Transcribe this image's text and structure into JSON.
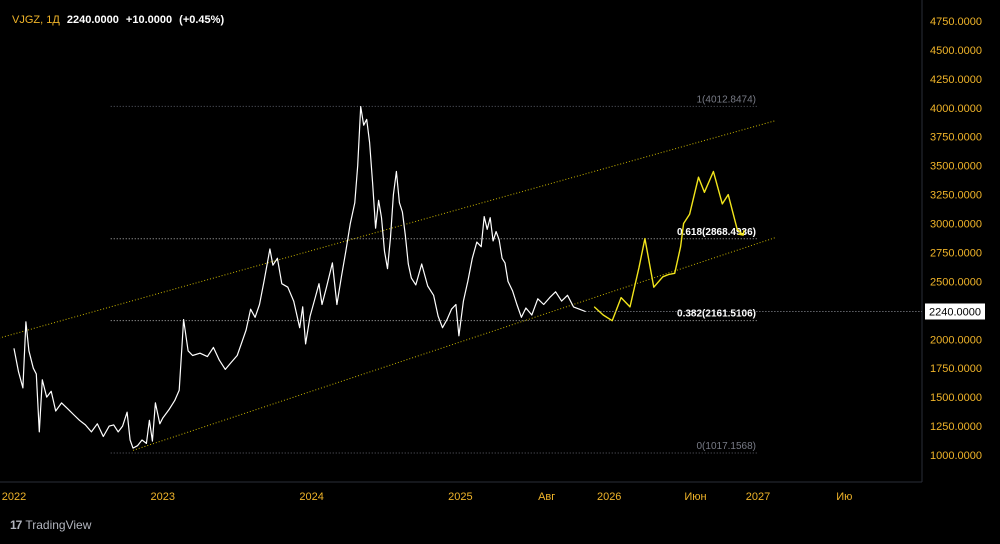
{
  "header": {
    "symbol": "VJGZ, 1Д",
    "last": "2240.0000",
    "change": "+10.0000",
    "change_pct": "(+0.45%)"
  },
  "watermark": {
    "brand": "TradingView",
    "logo_glyph": "17"
  },
  "colors": {
    "background": "#000000",
    "price": "#ffffff",
    "forecast": "#f2e51b",
    "channel": "#c8b400",
    "axis_text": "#f0b429",
    "fib": "#787b86"
  },
  "chart_data": {
    "type": "line",
    "ylim": [
      880,
      4830
    ],
    "y_ticks": [
      "1000.0000",
      "1250.0000",
      "1500.0000",
      "1750.0000",
      "2000.0000",
      "2250.0000",
      "2500.0000",
      "2750.0000",
      "3000.0000",
      "3250.0000",
      "3500.0000",
      "3750.0000",
      "4000.0000",
      "4250.0000",
      "4500.0000",
      "4750.0000"
    ],
    "x_ticks": [
      "2022",
      "2023",
      "2024",
      "2025",
      "Авг",
      "2026",
      "Июн",
      "2027",
      "Ию"
    ],
    "last_price_label": "2240.0000",
    "fib_levels": [
      {
        "label": "1(4012.8474)",
        "value": 4012.8474
      },
      {
        "label": "0.618(2868.4936)",
        "value": 2868.4936
      },
      {
        "label": "0.382(2161.5106)",
        "value": 2161.5106
      },
      {
        "label": "0(1017.1568)",
        "value": 1017.1568
      }
    ],
    "price_series": [
      [
        2022.0,
        1920
      ],
      [
        2022.03,
        1720
      ],
      [
        2022.06,
        1580
      ],
      [
        2022.08,
        2150
      ],
      [
        2022.1,
        1900
      ],
      [
        2022.13,
        1750
      ],
      [
        2022.15,
        1700
      ],
      [
        2022.17,
        1200
      ],
      [
        2022.19,
        1650
      ],
      [
        2022.22,
        1500
      ],
      [
        2022.25,
        1550
      ],
      [
        2022.28,
        1380
      ],
      [
        2022.32,
        1450
      ],
      [
        2022.36,
        1400
      ],
      [
        2022.4,
        1350
      ],
      [
        2022.44,
        1300
      ],
      [
        2022.48,
        1260
      ],
      [
        2022.52,
        1200
      ],
      [
        2022.56,
        1270
      ],
      [
        2022.6,
        1160
      ],
      [
        2022.64,
        1250
      ],
      [
        2022.67,
        1260
      ],
      [
        2022.7,
        1200
      ],
      [
        2022.73,
        1250
      ],
      [
        2022.76,
        1370
      ],
      [
        2022.78,
        1130
      ],
      [
        2022.8,
        1060
      ],
      [
        2022.83,
        1080
      ],
      [
        2022.86,
        1130
      ],
      [
        2022.89,
        1100
      ],
      [
        2022.91,
        1300
      ],
      [
        2022.93,
        1120
      ],
      [
        2022.95,
        1450
      ],
      [
        2022.98,
        1270
      ],
      [
        2023.0,
        1320
      ],
      [
        2023.04,
        1390
      ],
      [
        2023.08,
        1470
      ],
      [
        2023.11,
        1560
      ],
      [
        2023.13,
        1960
      ],
      [
        2023.14,
        2170
      ],
      [
        2023.17,
        1900
      ],
      [
        2023.2,
        1860
      ],
      [
        2023.25,
        1880
      ],
      [
        2023.3,
        1850
      ],
      [
        2023.34,
        1930
      ],
      [
        2023.38,
        1820
      ],
      [
        2023.42,
        1740
      ],
      [
        2023.46,
        1800
      ],
      [
        2023.5,
        1860
      ],
      [
        2023.53,
        1970
      ],
      [
        2023.56,
        2080
      ],
      [
        2023.59,
        2260
      ],
      [
        2023.62,
        2190
      ],
      [
        2023.65,
        2300
      ],
      [
        2023.68,
        2500
      ],
      [
        2023.72,
        2780
      ],
      [
        2023.74,
        2640
      ],
      [
        2023.77,
        2700
      ],
      [
        2023.8,
        2480
      ],
      [
        2023.84,
        2450
      ],
      [
        2023.88,
        2330
      ],
      [
        2023.92,
        2100
      ],
      [
        2023.94,
        2280
      ],
      [
        2023.96,
        1960
      ],
      [
        2023.99,
        2200
      ],
      [
        2024.02,
        2340
      ],
      [
        2024.05,
        2480
      ],
      [
        2024.07,
        2300
      ],
      [
        2024.1,
        2450
      ],
      [
        2024.14,
        2660
      ],
      [
        2024.17,
        2300
      ],
      [
        2024.2,
        2540
      ],
      [
        2024.23,
        2760
      ],
      [
        2024.26,
        3000
      ],
      [
        2024.29,
        3180
      ],
      [
        2024.31,
        3500
      ],
      [
        2024.33,
        4010
      ],
      [
        2024.35,
        3850
      ],
      [
        2024.37,
        3900
      ],
      [
        2024.39,
        3700
      ],
      [
        2024.41,
        3350
      ],
      [
        2024.43,
        2960
      ],
      [
        2024.45,
        3200
      ],
      [
        2024.47,
        3050
      ],
      [
        2024.49,
        2760
      ],
      [
        2024.51,
        2610
      ],
      [
        2024.53,
        2880
      ],
      [
        2024.55,
        3250
      ],
      [
        2024.57,
        3450
      ],
      [
        2024.59,
        3180
      ],
      [
        2024.61,
        3100
      ],
      [
        2024.63,
        2900
      ],
      [
        2024.65,
        2650
      ],
      [
        2024.67,
        2530
      ],
      [
        2024.7,
        2470
      ],
      [
        2024.74,
        2650
      ],
      [
        2024.78,
        2460
      ],
      [
        2024.82,
        2380
      ],
      [
        2024.85,
        2200
      ],
      [
        2024.88,
        2100
      ],
      [
        2024.91,
        2170
      ],
      [
        2024.94,
        2260
      ],
      [
        2024.97,
        2300
      ],
      [
        2024.99,
        2030
      ],
      [
        2025.02,
        2330
      ],
      [
        2025.05,
        2500
      ],
      [
        2025.08,
        2700
      ],
      [
        2025.11,
        2840
      ],
      [
        2025.14,
        2800
      ],
      [
        2025.16,
        3060
      ],
      [
        2025.18,
        2950
      ],
      [
        2025.2,
        3050
      ],
      [
        2025.22,
        2850
      ],
      [
        2025.24,
        2930
      ],
      [
        2025.26,
        2860
      ],
      [
        2025.28,
        2700
      ],
      [
        2025.3,
        2660
      ],
      [
        2025.32,
        2500
      ],
      [
        2025.35,
        2420
      ],
      [
        2025.38,
        2300
      ],
      [
        2025.41,
        2190
      ],
      [
        2025.44,
        2270
      ],
      [
        2025.48,
        2210
      ],
      [
        2025.52,
        2350
      ],
      [
        2025.56,
        2300
      ],
      [
        2025.6,
        2360
      ],
      [
        2025.64,
        2410
      ],
      [
        2025.68,
        2330
      ],
      [
        2025.72,
        2380
      ],
      [
        2025.76,
        2280
      ],
      [
        2025.8,
        2260
      ],
      [
        2025.84,
        2240
      ]
    ],
    "forecast_series": [
      [
        2025.9,
        2280
      ],
      [
        2025.96,
        2210
      ],
      [
        2026.02,
        2160
      ],
      [
        2026.08,
        2360
      ],
      [
        2026.14,
        2280
      ],
      [
        2026.2,
        2620
      ],
      [
        2026.24,
        2870
      ],
      [
        2026.3,
        2450
      ],
      [
        2026.36,
        2540
      ],
      [
        2026.4,
        2560
      ],
      [
        2026.44,
        2570
      ],
      [
        2026.48,
        2800
      ],
      [
        2026.5,
        3000
      ],
      [
        2026.54,
        3080
      ],
      [
        2026.6,
        3400
      ],
      [
        2026.64,
        3270
      ],
      [
        2026.7,
        3450
      ],
      [
        2026.76,
        3170
      ],
      [
        2026.8,
        3250
      ],
      [
        2026.86,
        2950
      ],
      [
        2026.9,
        2900
      ]
    ],
    "channel_lines": [
      {
        "name": "upper",
        "points": [
          [
            2021.9,
            2010
          ],
          [
            2027.12,
            3890
          ]
        ]
      },
      {
        "name": "lower",
        "points": [
          [
            2022.8,
            1040
          ],
          [
            2027.12,
            2880
          ]
        ]
      }
    ]
  }
}
